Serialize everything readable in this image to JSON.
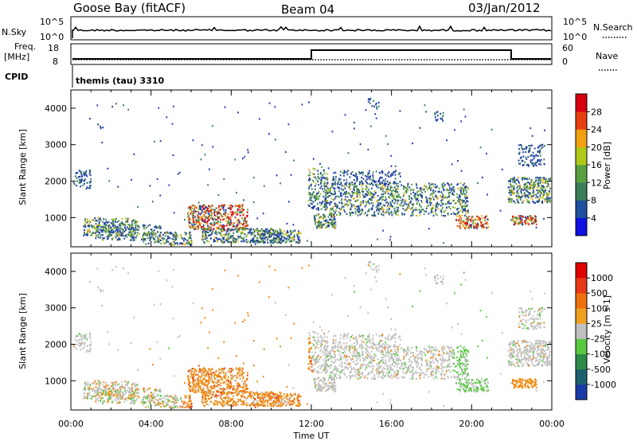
{
  "header": {
    "station": "Goose Bay (fitACF)",
    "beam": "Beam 04",
    "date": "03/Jan/2012"
  },
  "top_panels": {
    "nsky_label": "N.Sky",
    "nsearch_label": "N.Search",
    "exp_ticks_left": [
      "10^5",
      "10^0"
    ],
    "exp_ticks_right": [
      "10^5",
      "10^0"
    ],
    "freq_label": "Freq.",
    "freq_unit": "[MHz]",
    "freq_ticks": [
      "18",
      "8"
    ],
    "nave_label": "Nave",
    "nave_ticks": [
      "60",
      "0"
    ],
    "cpid_label": "CPID",
    "cpid_value": "themis (tau) 3310"
  },
  "chart_data": [
    {
      "type": "heatmap",
      "name": "power",
      "ylabel": "Slant Range [km]",
      "xlabel": "Time UT",
      "x_ticks": [
        "00:00",
        "04:00",
        "08:00",
        "12:00",
        "16:00",
        "20:00",
        "00:00"
      ],
      "y_ticks": [
        "1000",
        "2000",
        "3000",
        "4000"
      ],
      "ylim": [
        200,
        4500
      ],
      "colorbar": {
        "label": "Power [dB]",
        "ticks": [
          "4",
          "8",
          "12",
          "16",
          "20",
          "24",
          "28"
        ],
        "colors": [
          "#1010e0",
          "#2050a0",
          "#3a7d5a",
          "#5aa040",
          "#b0c818",
          "#f0a010",
          "#e84010",
          "#d80010"
        ]
      }
    },
    {
      "type": "heatmap",
      "name": "velocity",
      "ylabel": "Slant Range [km]",
      "xlabel": "Time UT",
      "x_ticks": [
        "00:00",
        "04:00",
        "08:00",
        "12:00",
        "16:00",
        "20:00",
        "00:00"
      ],
      "y_ticks": [
        "1000",
        "2000",
        "3000",
        "4000"
      ],
      "ylim": [
        200,
        4500
      ],
      "colorbar": {
        "label": "Velocity [m s-1]",
        "ticks": [
          "1000",
          "500",
          "100",
          "25",
          "-25",
          "-100",
          "-500",
          "-1000"
        ],
        "colors": [
          "#1a3ca8",
          "#1e6070",
          "#2d8a48",
          "#58c840",
          "#c0c0c0",
          "#f0a020",
          "#f07010",
          "#e83818",
          "#e00000"
        ]
      }
    }
  ],
  "axis": {
    "xlabel": "Time UT"
  },
  "colors": {
    "power_scatter": [
      "#1f3fa8",
      "#3a7d5a",
      "#5aa040",
      "#b0c818",
      "#f0a010",
      "#e84010",
      "#d80010"
    ],
    "velocity_scatter": [
      "#c0c0c0",
      "#f08a10",
      "#58c840",
      "#1a3ca8",
      "#e83818"
    ]
  }
}
